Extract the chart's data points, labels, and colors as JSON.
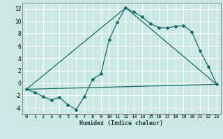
{
  "xlabel": "Humidex (Indice chaleur)",
  "background_color": "#cce8e4",
  "grid_color": "#ffffff",
  "line_color": "#1a6b6b",
  "xlim": [
    -0.5,
    23.5
  ],
  "ylim": [
    -5,
    13
  ],
  "xticks": [
    0,
    1,
    2,
    3,
    4,
    5,
    6,
    7,
    8,
    9,
    10,
    11,
    12,
    13,
    14,
    15,
    16,
    17,
    18,
    19,
    20,
    21,
    22,
    23
  ],
  "yticks": [
    -4,
    -2,
    0,
    2,
    4,
    6,
    8,
    10,
    12
  ],
  "line1_x": [
    0,
    1,
    2,
    3,
    4,
    5,
    6,
    7,
    8,
    9,
    10,
    11,
    12,
    13,
    14,
    15,
    16,
    17,
    18,
    19,
    20,
    21,
    22,
    23
  ],
  "line1_y": [
    -1,
    -1.5,
    -2.2,
    -2.7,
    -2.3,
    -3.5,
    -4.3,
    -2.2,
    0.6,
    1.5,
    7.0,
    9.9,
    12.2,
    11.5,
    10.7,
    9.6,
    9.0,
    8.9,
    9.2,
    9.3,
    8.3,
    5.2,
    2.7,
    -0.2
  ],
  "line2_x": [
    0,
    12,
    23
  ],
  "line2_y": [
    -1,
    12.2,
    -0.2
  ],
  "line3_x": [
    0,
    23
  ],
  "line3_y": [
    -1,
    -0.2
  ],
  "xlabel_fontsize": 6.0,
  "tick_fontsize": 5.0,
  "ytick_fontsize": 5.5
}
